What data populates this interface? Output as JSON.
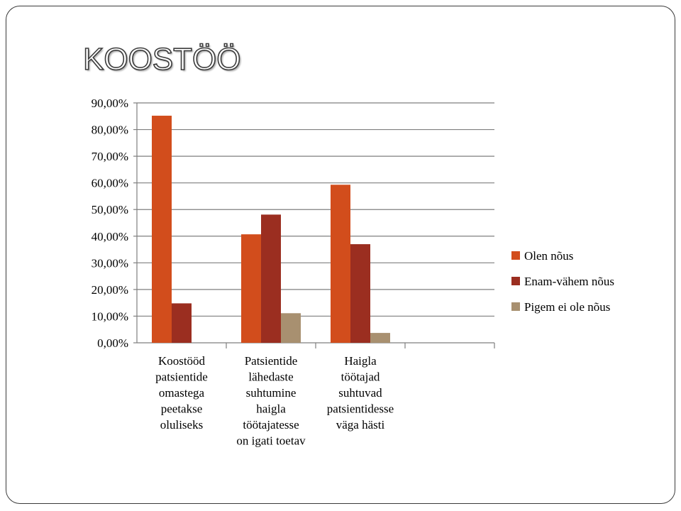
{
  "slide": {
    "title": "KOOSTÖÖ"
  },
  "chart_data": {
    "type": "bar",
    "title": "",
    "xlabel": "",
    "ylabel": "",
    "ylim": [
      0,
      90
    ],
    "ytick_step": 10,
    "ytick_labels": [
      "0,00%",
      "10,00%",
      "20,00%",
      "30,00%",
      "40,00%",
      "50,00%",
      "60,00%",
      "70,00%",
      "80,00%",
      "90,00%"
    ],
    "grid": true,
    "legend_position": "right",
    "categories": [
      [
        "Koostööd",
        "patsientide",
        "omastega",
        "peetakse",
        "oluliseks"
      ],
      [
        "Patsientide",
        "lähedaste",
        "suhtumine",
        "haigla",
        "töötajatesse",
        "on igati toetav"
      ],
      [
        "Haigla",
        "töötajad",
        "suhtuvad",
        "patsientidesse",
        "väga hästi"
      ],
      []
    ],
    "series": [
      {
        "name": "Olen nõus",
        "color": "#d24d1c",
        "values": [
          85.2,
          40.7,
          59.3,
          null
        ]
      },
      {
        "name": "Enam-vähem nõus",
        "color": "#9b2e20",
        "values": [
          14.8,
          48.1,
          37.0,
          null
        ]
      },
      {
        "name": "Pigem ei ole nõus",
        "color": "#a89070",
        "values": [
          0,
          11.1,
          3.7,
          null
        ]
      }
    ]
  }
}
